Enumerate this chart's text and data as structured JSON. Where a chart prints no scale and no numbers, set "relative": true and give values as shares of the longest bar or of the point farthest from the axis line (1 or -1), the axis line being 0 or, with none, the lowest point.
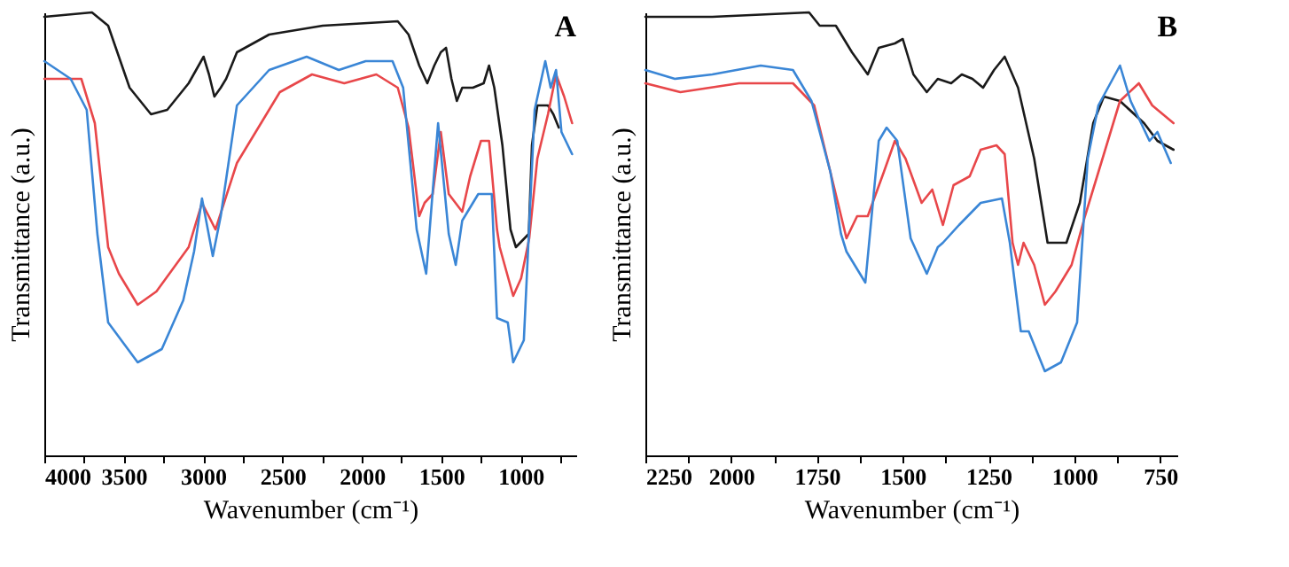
{
  "chart_data": [
    {
      "type": "line",
      "title": "A",
      "xlabel": "Wavenumber (cm⁻¹)",
      "ylabel": "Transmittance (a.u.)",
      "relative": true,
      "grid": false,
      "legend": false,
      "line_style": "solid",
      "marker": "none",
      "tick_labels": "x",
      "xlim": [
        4000,
        650
      ],
      "xticks": [
        4000,
        {
          "value": 3750,
          "label": null
        },
        3500,
        {
          "value": 3250,
          "label": null
        },
        3000,
        {
          "value": 2750,
          "label": null
        },
        2500,
        {
          "value": 2250,
          "label": null
        },
        2000,
        {
          "value": 1750,
          "label": null
        },
        1500,
        {
          "value": 1250,
          "label": null
        },
        1000,
        {
          "value": 750,
          "label": null
        }
      ],
      "series": [
        {
          "color": "#1a1a1a",
          "x": [
            4000,
            3700,
            3598,
            3463,
            3328,
            3226,
            3091,
            2997,
            2963,
            2929,
            2889,
            2855,
            2787,
            2584,
            2247,
            1774,
            1706,
            1639,
            1588,
            1544,
            1503,
            1470,
            1436,
            1402,
            1368,
            1301,
            1233,
            1199,
            1166,
            1115,
            1064,
            1030,
            949,
            929,
            895,
            828,
            794,
            760
          ],
          "values": [
            0.99,
            1.0,
            0.97,
            0.83,
            0.77,
            0.78,
            0.84,
            0.9,
            0.86,
            0.81,
            0.83,
            0.85,
            0.91,
            0.95,
            0.97,
            0.98,
            0.95,
            0.88,
            0.84,
            0.88,
            0.91,
            0.92,
            0.85,
            0.8,
            0.83,
            0.83,
            0.84,
            0.88,
            0.83,
            0.7,
            0.51,
            0.47,
            0.5,
            0.7,
            0.79,
            0.79,
            0.77,
            0.74
          ]
        },
        {
          "color": "#e8474a",
          "x": [
            4000,
            3767,
            3682,
            3598,
            3530,
            3412,
            3294,
            3091,
            3007,
            2922,
            2787,
            2517,
            2314,
            2111,
            1909,
            1774,
            1706,
            1639,
            1605,
            1554,
            1503,
            1453,
            1368,
            1318,
            1250,
            1199,
            1149,
            1132,
            1047,
            997,
            946,
            895,
            828,
            777,
            726,
            676
          ],
          "values": [
            0.85,
            0.85,
            0.75,
            0.47,
            0.41,
            0.34,
            0.37,
            0.47,
            0.57,
            0.51,
            0.66,
            0.82,
            0.86,
            0.84,
            0.86,
            0.83,
            0.74,
            0.54,
            0.57,
            0.59,
            0.73,
            0.59,
            0.55,
            0.63,
            0.71,
            0.71,
            0.51,
            0.47,
            0.36,
            0.4,
            0.49,
            0.67,
            0.77,
            0.86,
            0.81,
            0.75
          ]
        },
        {
          "color": "#3a86d6",
          "x": [
            4000,
            3834,
            3733,
            3666,
            3598,
            3412,
            3260,
            3125,
            3057,
            3007,
            2939,
            2889,
            2787,
            2584,
            2348,
            2145,
            1976,
            1807,
            1740,
            1655,
            1595,
            1520,
            1453,
            1409,
            1368,
            1267,
            1182,
            1149,
            1081,
            1047,
            980,
            912,
            845,
            811,
            777,
            743,
            676
          ],
          "values": [
            0.89,
            0.85,
            0.78,
            0.5,
            0.3,
            0.21,
            0.24,
            0.35,
            0.46,
            0.58,
            0.45,
            0.54,
            0.79,
            0.87,
            0.9,
            0.87,
            0.89,
            0.89,
            0.83,
            0.51,
            0.41,
            0.75,
            0.5,
            0.43,
            0.53,
            0.59,
            0.59,
            0.31,
            0.3,
            0.21,
            0.26,
            0.78,
            0.89,
            0.83,
            0.87,
            0.73,
            0.68
          ]
        }
      ]
    },
    {
      "type": "line",
      "title": "B",
      "xlabel": "Wavenumber (cm⁻¹)",
      "ylabel": "Transmittance (a.u.)",
      "relative": true,
      "grid": false,
      "legend": false,
      "line_style": "solid",
      "marker": "none",
      "tick_labels": "x",
      "xlim": [
        2250,
        700
      ],
      "xticks": [
        2250,
        {
          "value": 2125,
          "label": null
        },
        2000,
        {
          "value": 1875,
          "label": null
        },
        1750,
        {
          "value": 1625,
          "label": null
        },
        1500,
        {
          "value": 1375,
          "label": null
        },
        1250,
        {
          "value": 1125,
          "label": null
        },
        1000,
        {
          "value": 875,
          "label": null
        },
        750
      ],
      "series": [
        {
          "color": "#1a1a1a",
          "x": [
            2250,
            2055,
            1773,
            1742,
            1695,
            1648,
            1602,
            1570,
            1523,
            1500,
            1469,
            1430,
            1398,
            1359,
            1328,
            1297,
            1266,
            1234,
            1203,
            1164,
            1117,
            1078,
            1055,
            1023,
            984,
            945,
            914,
            867,
            797,
            758,
            711
          ],
          "values": [
            0.99,
            0.99,
            1.0,
            0.97,
            0.97,
            0.91,
            0.86,
            0.92,
            0.93,
            0.94,
            0.86,
            0.82,
            0.85,
            0.84,
            0.86,
            0.85,
            0.83,
            0.87,
            0.9,
            0.83,
            0.67,
            0.48,
            0.48,
            0.48,
            0.57,
            0.75,
            0.81,
            0.8,
            0.75,
            0.71,
            0.69
          ]
        },
        {
          "color": "#e8474a",
          "x": [
            2250,
            2148,
            1977,
            1820,
            1758,
            1711,
            1664,
            1633,
            1602,
            1555,
            1523,
            1492,
            1445,
            1414,
            1383,
            1352,
            1305,
            1273,
            1227,
            1203,
            1180,
            1164,
            1148,
            1117,
            1086,
            1055,
            1008,
            969,
            914,
            867,
            812,
            773,
            711
          ],
          "values": [
            0.84,
            0.82,
            0.84,
            0.84,
            0.79,
            0.64,
            0.49,
            0.54,
            0.54,
            0.64,
            0.71,
            0.67,
            0.57,
            0.6,
            0.52,
            0.61,
            0.63,
            0.69,
            0.7,
            0.68,
            0.48,
            0.43,
            0.48,
            0.43,
            0.34,
            0.37,
            0.43,
            0.54,
            0.68,
            0.8,
            0.84,
            0.79,
            0.75
          ]
        },
        {
          "color": "#3a86d6",
          "x": [
            2250,
            2164,
            2055,
            1914,
            1820,
            1766,
            1711,
            1680,
            1664,
            1609,
            1570,
            1547,
            1516,
            1477,
            1430,
            1398,
            1383,
            1336,
            1273,
            1211,
            1188,
            1156,
            1133,
            1086,
            1039,
            992,
            961,
            930,
            867,
            836,
            781,
            758,
            719
          ],
          "values": [
            0.87,
            0.85,
            0.86,
            0.88,
            0.87,
            0.8,
            0.64,
            0.5,
            0.46,
            0.39,
            0.71,
            0.74,
            0.71,
            0.49,
            0.41,
            0.47,
            0.48,
            0.52,
            0.57,
            0.58,
            0.48,
            0.28,
            0.28,
            0.19,
            0.21,
            0.3,
            0.67,
            0.79,
            0.88,
            0.8,
            0.71,
            0.73,
            0.66
          ]
        }
      ]
    }
  ]
}
